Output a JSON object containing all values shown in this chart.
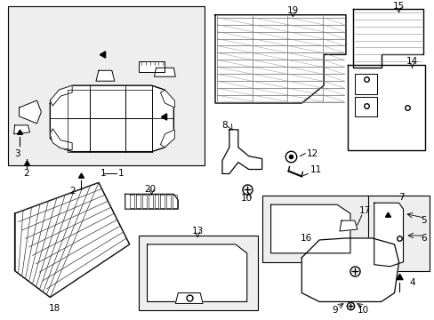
{
  "background_color": "#ffffff",
  "line_color": "#000000",
  "text_color": "#000000",
  "fig_width": 4.89,
  "fig_height": 3.6,
  "dpi": 100,
  "font_size": 7.5
}
